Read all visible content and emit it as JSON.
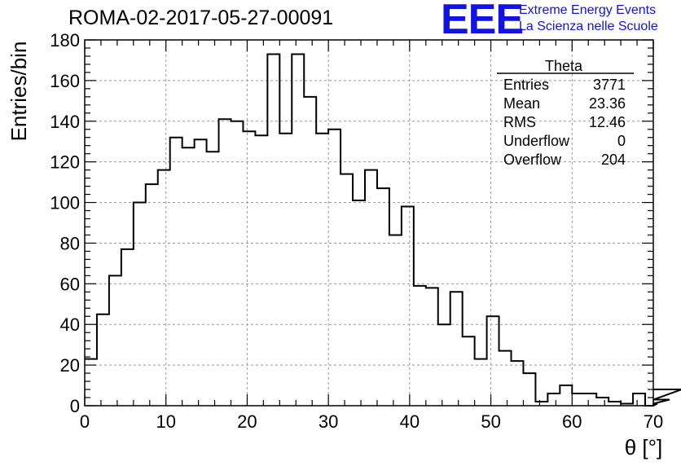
{
  "header": {
    "title": "ROMA-02-2017-05-27-00091",
    "logo_text": "EEE",
    "brand_line1": "Extreme Energy Events",
    "brand_line2": "La Scienza nelle Scuole",
    "brand_color": "#1212e6"
  },
  "stats_box": {
    "title": "Theta",
    "rows": [
      {
        "label": "Entries",
        "value": "3771"
      },
      {
        "label": "Mean",
        "value": "23.36"
      },
      {
        "label": "RMS",
        "value": "12.46"
      },
      {
        "label": "Underflow",
        "value": "0"
      },
      {
        "label": "Overflow",
        "value": "204"
      }
    ]
  },
  "chart_data": {
    "type": "histogram",
    "title": "ROMA-02-2017-05-27-00091",
    "xlabel": "θ [°]",
    "ylabel": "Entries/bin",
    "xlim": [
      0,
      70
    ],
    "ylim": [
      0,
      180
    ],
    "grid": true,
    "bin_edges_start": 0,
    "bin_width": 1.5,
    "x_ticks": [
      0,
      10,
      20,
      30,
      40,
      50,
      60,
      70
    ],
    "y_ticks": [
      0,
      20,
      40,
      60,
      80,
      100,
      120,
      140,
      160,
      180
    ],
    "values": [
      23,
      45,
      64,
      77,
      100,
      109,
      116,
      132,
      127,
      131,
      125,
      141,
      140,
      135,
      133,
      173,
      134,
      173,
      152,
      134,
      136,
      114,
      101,
      116,
      107,
      84,
      98,
      59,
      58,
      40,
      56,
      34,
      23,
      44,
      27,
      22,
      16,
      2,
      6,
      10,
      6,
      6,
      4,
      2,
      1,
      6,
      0,
      1,
      3,
      8
    ],
    "line_color": "#000000"
  }
}
